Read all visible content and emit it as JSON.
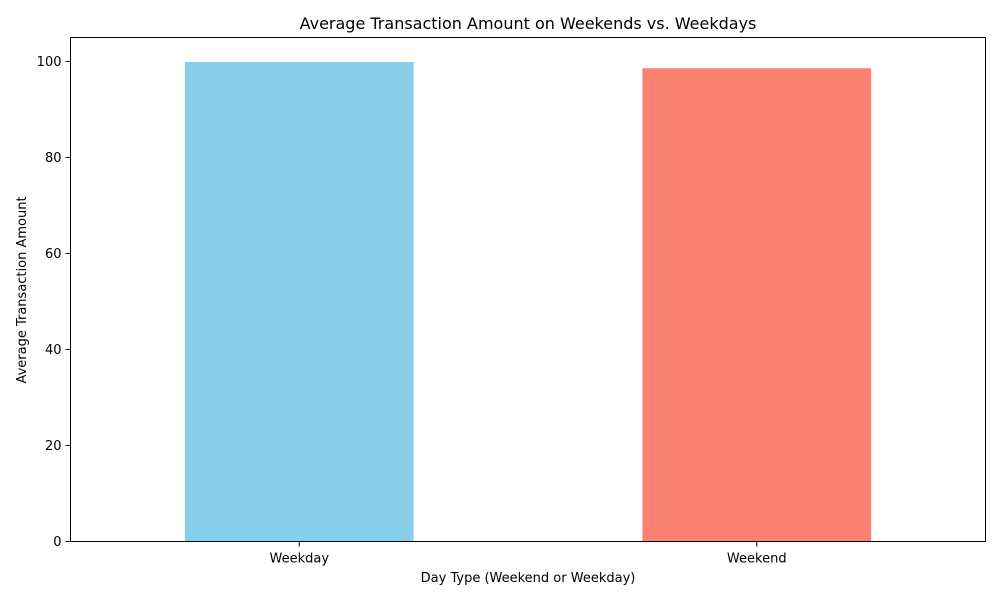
{
  "chart_data": {
    "type": "bar",
    "title": "Average Transaction Amount on Weekends vs. Weekdays",
    "xlabel": "Day Type (Weekend or Weekday)",
    "ylabel": "Average Transaction Amount",
    "categories": [
      "Weekday",
      "Weekend"
    ],
    "values": [
      99.9,
      98.6
    ],
    "colors": [
      "#87ceeb",
      "#fa8072"
    ],
    "ylim": [
      0,
      105
    ],
    "yticks": [
      0,
      20,
      40,
      60,
      80,
      100
    ],
    "grid": false,
    "legend": "none"
  }
}
